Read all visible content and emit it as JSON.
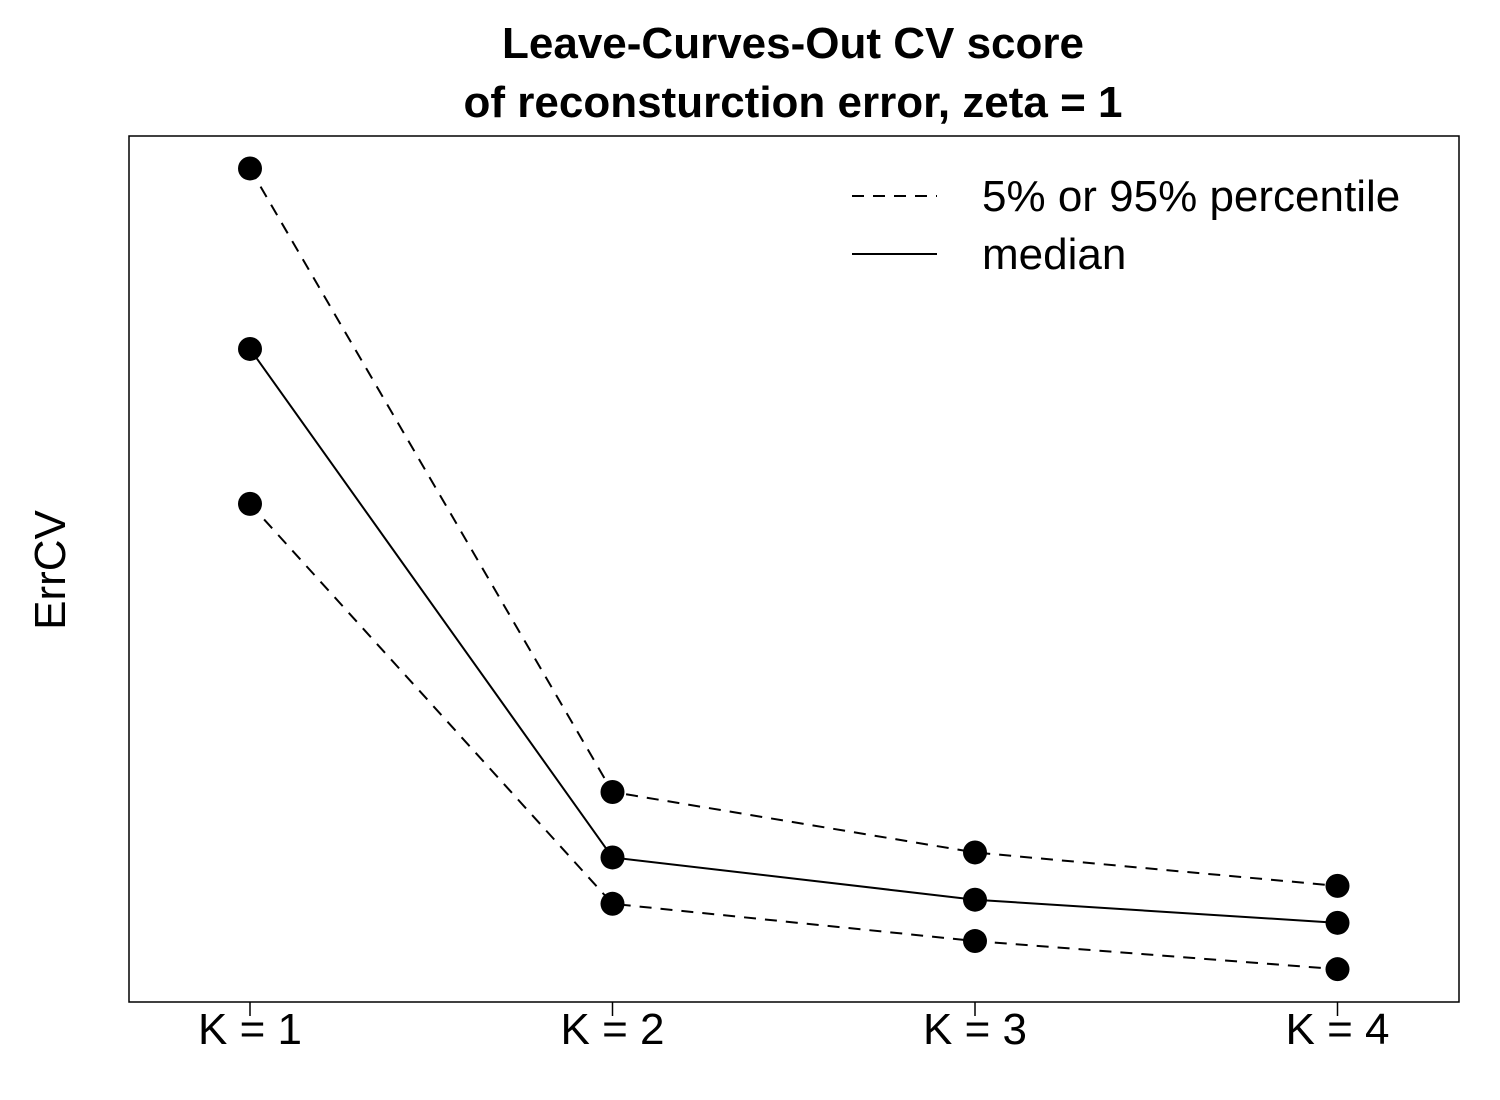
{
  "chart_data": {
    "type": "line",
    "title": [
      "Leave-Curves-Out CV score",
      "of reconsturction error, zeta = 1"
    ],
    "xlabel": "",
    "ylabel": "ErrCV",
    "categories": [
      "K = 1",
      "K = 2",
      "K = 3",
      "K = 4"
    ],
    "ylim": [
      0,
      1
    ],
    "yticks_shown": false,
    "grid": false,
    "legend": {
      "position": "top-right",
      "entries": [
        {
          "label": "5% or 95% percentile",
          "linestyle": "dashed"
        },
        {
          "label": "median",
          "linestyle": "solid"
        }
      ]
    },
    "series": [
      {
        "name": "95% percentile",
        "linestyle": "dashed",
        "values": [
          0.9625,
          0.2425,
          0.1727,
          0.1341
        ]
      },
      {
        "name": "median",
        "linestyle": "solid",
        "values": [
          0.7541,
          0.1669,
          0.1181,
          0.0914
        ]
      },
      {
        "name": "5% percentile",
        "linestyle": "dashed",
        "values": [
          0.5752,
          0.1134,
          0.0704,
          0.0379
        ]
      }
    ],
    "colors": {
      "line": "#000000",
      "marker": "#000000",
      "background": "#ffffff"
    }
  }
}
